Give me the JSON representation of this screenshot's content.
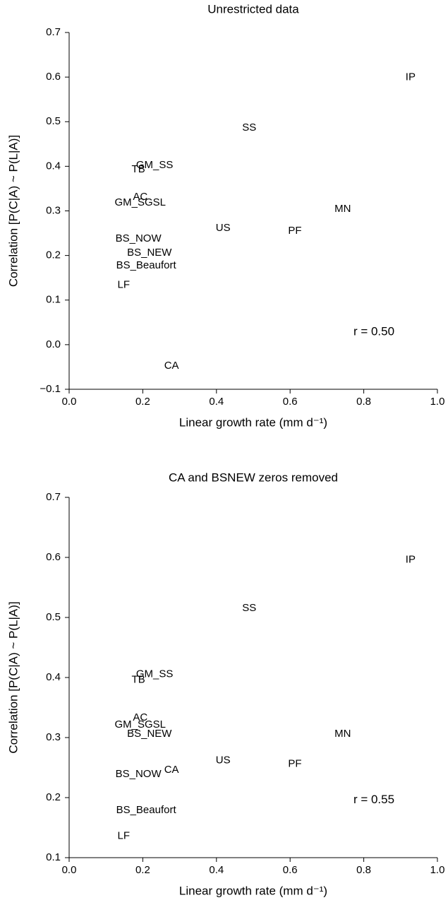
{
  "chart_data": [
    {
      "type": "scatter",
      "title": "Unrestricted data",
      "x_label": "Linear growth rate (mm d⁻¹)",
      "y_label": "Correlation [P(C|A) ~ P(L|A)]",
      "labels": [
        "IP",
        "SS",
        "GM_SS",
        "TB",
        "AC",
        "GM_SGSL",
        "MN",
        "US",
        "PF",
        "BS_NOW",
        "BS_NEW",
        "BS_Beaufort",
        "LF",
        "CA"
      ],
      "x": [
        0.927,
        0.489,
        0.232,
        0.188,
        0.193,
        0.193,
        0.743,
        0.418,
        0.613,
        0.188,
        0.218,
        0.209,
        0.148,
        0.278
      ],
      "values": [
        0.599,
        0.486,
        0.402,
        0.393,
        0.331,
        0.318,
        0.304,
        0.261,
        0.255,
        0.237,
        0.206,
        0.177,
        0.134,
        -0.048
      ],
      "color": "#000000",
      "annotation": "r = 0.50",
      "xlim": [
        0,
        1
      ],
      "xticks": [
        {
          "value": 0,
          "label": "0.0"
        },
        0.2,
        0.4,
        0.6,
        0.8,
        {
          "value": 1,
          "label": "1.0"
        }
      ],
      "ylim": [
        -0.1,
        0.7
      ],
      "yticks": [
        {
          "value": -0.1,
          "label": "−0.1"
        },
        {
          "value": 0,
          "label": "0.0"
        },
        0.1,
        0.2,
        0.3,
        0.4,
        0.5,
        0.6,
        0.7
      ]
    },
    {
      "type": "scatter",
      "title": "CA and BSNEW zeros removed",
      "x_label": "Linear growth rate (mm d⁻¹)",
      "y_label": "Correlation [P(C|A) ~ P(L|A)]",
      "labels": [
        "IP",
        "SS",
        "GM_SS",
        "TB",
        "AC",
        "GM_SGSL",
        "BS_NEW",
        "MN",
        "US",
        "PF",
        "CA",
        "BS_NOW",
        "BS_Beaufort",
        "LF"
      ],
      "x": [
        0.927,
        0.489,
        0.232,
        0.188,
        0.193,
        0.193,
        0.218,
        0.743,
        0.418,
        0.613,
        0.278,
        0.188,
        0.209,
        0.148
      ],
      "values": [
        0.596,
        0.515,
        0.405,
        0.396,
        0.333,
        0.321,
        0.306,
        0.306,
        0.262,
        0.256,
        0.246,
        0.239,
        0.179,
        0.136
      ],
      "color": "#000000",
      "annotation": "r = 0.55",
      "xlim": [
        0,
        1
      ],
      "xticks": [
        {
          "value": 0,
          "label": "0.0"
        },
        0.2,
        0.4,
        0.6,
        0.8,
        {
          "value": 1,
          "label": "1.0"
        }
      ],
      "ylim": [
        0.1,
        0.7
      ],
      "yticks": [
        0.1,
        0.2,
        0.3,
        0.4,
        0.5,
        0.6,
        0.7
      ]
    }
  ]
}
